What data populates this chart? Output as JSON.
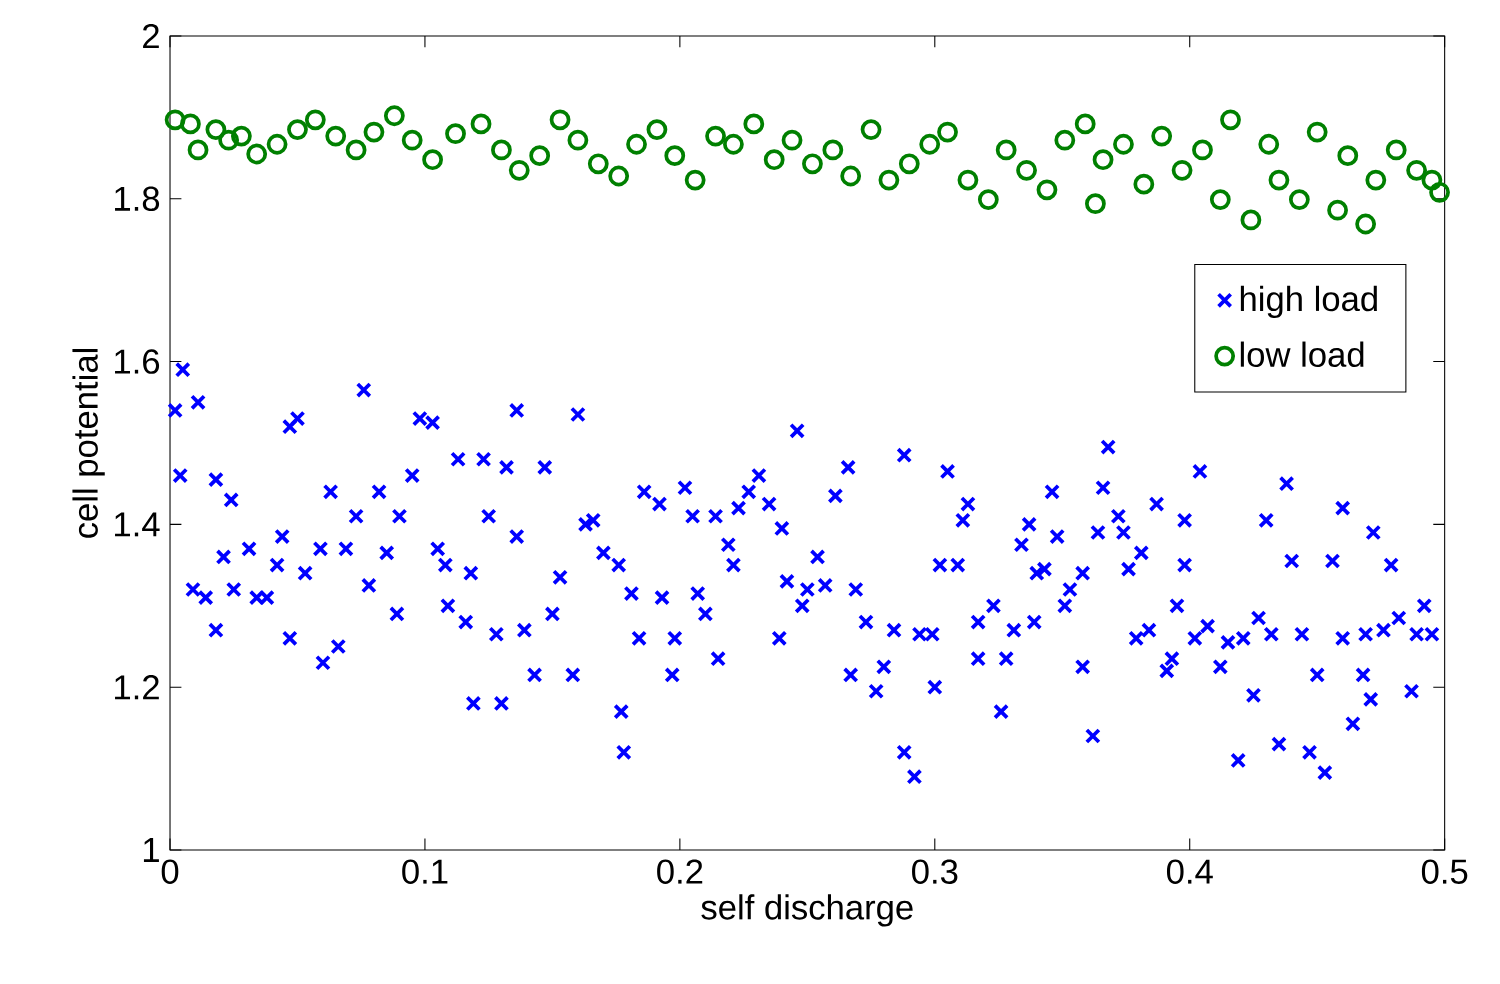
{
  "chart_data": {
    "type": "scatter",
    "xlabel": "self discharge",
    "ylabel": "cell potential",
    "xlim": [
      0,
      0.5
    ],
    "ylim": [
      1,
      2
    ],
    "xticks": [
      0,
      0.1,
      0.2,
      0.3,
      0.4,
      0.5
    ],
    "yticks": [
      1,
      1.2,
      1.4,
      1.6,
      1.8,
      2
    ],
    "legend": "right",
    "series": [
      {
        "name": "high load",
        "color": "#0000ff",
        "marker": "cross",
        "x": [
          0.005,
          0.002,
          0.011,
          0.004,
          0.018,
          0.024,
          0.009,
          0.014,
          0.018,
          0.021,
          0.025,
          0.031,
          0.034,
          0.038,
          0.042,
          0.044,
          0.047,
          0.047,
          0.05,
          0.053,
          0.059,
          0.06,
          0.066,
          0.063,
          0.069,
          0.073,
          0.076,
          0.078,
          0.082,
          0.085,
          0.089,
          0.09,
          0.095,
          0.098,
          0.103,
          0.105,
          0.108,
          0.109,
          0.113,
          0.116,
          0.118,
          0.119,
          0.123,
          0.125,
          0.128,
          0.13,
          0.132,
          0.136,
          0.136,
          0.139,
          0.143,
          0.147,
          0.15,
          0.153,
          0.158,
          0.16,
          0.163,
          0.166,
          0.17,
          0.176,
          0.177,
          0.178,
          0.181,
          0.184,
          0.186,
          0.192,
          0.193,
          0.197,
          0.198,
          0.202,
          0.205,
          0.207,
          0.21,
          0.214,
          0.215,
          0.219,
          0.221,
          0.223,
          0.227,
          0.231,
          0.235,
          0.239,
          0.24,
          0.242,
          0.246,
          0.248,
          0.266,
          0.261,
          0.254,
          0.25,
          0.257,
          0.269,
          0.273,
          0.267,
          0.277,
          0.28,
          0.284,
          0.288,
          0.288,
          0.292,
          0.294,
          0.299,
          0.3,
          0.302,
          0.305,
          0.309,
          0.311,
          0.313,
          0.317,
          0.317,
          0.323,
          0.326,
          0.328,
          0.331,
          0.334,
          0.337,
          0.339,
          0.34,
          0.343,
          0.346,
          0.348,
          0.351,
          0.353,
          0.358,
          0.358,
          0.362,
          0.364,
          0.366,
          0.368,
          0.372,
          0.374,
          0.376,
          0.379,
          0.381,
          0.384,
          0.387,
          0.391,
          0.393,
          0.395,
          0.398,
          0.398,
          0.402,
          0.404,
          0.407,
          0.412,
          0.415,
          0.419,
          0.421,
          0.425,
          0.427,
          0.43,
          0.432,
          0.435,
          0.438,
          0.44,
          0.444,
          0.447,
          0.45,
          0.453,
          0.456,
          0.46,
          0.46,
          0.464,
          0.468,
          0.469,
          0.471,
          0.472,
          0.476,
          0.479,
          0.482,
          0.487,
          0.489,
          0.492,
          0.495
        ],
        "values": [
          1.59,
          1.54,
          1.55,
          1.46,
          1.455,
          1.43,
          1.32,
          1.31,
          1.27,
          1.36,
          1.32,
          1.37,
          1.31,
          1.31,
          1.35,
          1.385,
          1.26,
          1.52,
          1.53,
          1.34,
          1.37,
          1.23,
          1.25,
          1.44,
          1.37,
          1.41,
          1.565,
          1.325,
          1.44,
          1.365,
          1.29,
          1.41,
          1.46,
          1.53,
          1.525,
          1.37,
          1.35,
          1.3,
          1.48,
          1.28,
          1.34,
          1.18,
          1.48,
          1.41,
          1.265,
          1.18,
          1.47,
          1.385,
          1.54,
          1.27,
          1.215,
          1.47,
          1.29,
          1.335,
          1.215,
          1.535,
          1.4,
          1.405,
          1.365,
          1.35,
          1.17,
          1.12,
          1.315,
          1.26,
          1.44,
          1.425,
          1.31,
          1.215,
          1.26,
          1.445,
          1.41,
          1.315,
          1.29,
          1.41,
          1.235,
          1.375,
          1.35,
          1.42,
          1.44,
          1.46,
          1.425,
          1.26,
          1.395,
          1.33,
          1.515,
          1.3,
          1.47,
          1.435,
          1.36,
          1.32,
          1.325,
          1.32,
          1.28,
          1.215,
          1.195,
          1.225,
          1.27,
          1.485,
          1.12,
          1.09,
          1.265,
          1.265,
          1.2,
          1.35,
          1.465,
          1.35,
          1.405,
          1.425,
          1.235,
          1.28,
          1.3,
          1.17,
          1.235,
          1.27,
          1.375,
          1.4,
          1.28,
          1.34,
          1.345,
          1.44,
          1.385,
          1.3,
          1.32,
          1.34,
          1.225,
          1.14,
          1.39,
          1.445,
          1.495,
          1.41,
          1.39,
          1.345,
          1.26,
          1.365,
          1.27,
          1.425,
          1.22,
          1.235,
          1.3,
          1.35,
          1.405,
          1.26,
          1.465,
          1.275,
          1.225,
          1.255,
          1.11,
          1.26,
          1.19,
          1.285,
          1.405,
          1.265,
          1.13,
          1.45,
          1.355,
          1.265,
          1.12,
          1.215,
          1.095,
          1.355,
          1.42,
          1.26,
          1.155,
          1.215,
          1.265,
          1.185,
          1.39,
          1.27,
          1.35,
          1.285,
          1.195,
          1.265,
          1.3,
          1.265
        ]
      },
      {
        "name": "low load",
        "color": "#008000",
        "marker": "circle",
        "x": [
          0.002,
          0.008,
          0.011,
          0.018,
          0.023,
          0.028,
          0.034,
          0.042,
          0.05,
          0.057,
          0.065,
          0.073,
          0.08,
          0.088,
          0.095,
          0.103,
          0.112,
          0.122,
          0.13,
          0.137,
          0.145,
          0.153,
          0.16,
          0.168,
          0.176,
          0.183,
          0.191,
          0.198,
          0.206,
          0.214,
          0.221,
          0.229,
          0.237,
          0.244,
          0.252,
          0.26,
          0.267,
          0.275,
          0.282,
          0.29,
          0.298,
          0.305,
          0.313,
          0.321,
          0.328,
          0.336,
          0.344,
          0.351,
          0.359,
          0.363,
          0.366,
          0.374,
          0.382,
          0.389,
          0.397,
          0.405,
          0.412,
          0.416,
          0.424,
          0.431,
          0.435,
          0.443,
          0.45,
          0.458,
          0.462,
          0.469,
          0.473,
          0.481,
          0.489,
          0.495,
          0.498
        ],
        "values": [
          1.897,
          1.892,
          1.86,
          1.885,
          1.872,
          1.877,
          1.855,
          1.867,
          1.885,
          1.897,
          1.877,
          1.86,
          1.882,
          1.902,
          1.872,
          1.848,
          1.88,
          1.892,
          1.86,
          1.835,
          1.853,
          1.897,
          1.872,
          1.843,
          1.828,
          1.867,
          1.885,
          1.853,
          1.823,
          1.877,
          1.867,
          1.892,
          1.848,
          1.872,
          1.843,
          1.86,
          1.828,
          1.885,
          1.823,
          1.843,
          1.867,
          1.882,
          1.823,
          1.799,
          1.86,
          1.835,
          1.811,
          1.872,
          1.892,
          1.794,
          1.848,
          1.867,
          1.818,
          1.877,
          1.835,
          1.86,
          1.799,
          1.897,
          1.774,
          1.867,
          1.823,
          1.799,
          1.882,
          1.786,
          1.853,
          1.769,
          1.823,
          1.86,
          1.835,
          1.823,
          1.808
        ]
      }
    ]
  }
}
